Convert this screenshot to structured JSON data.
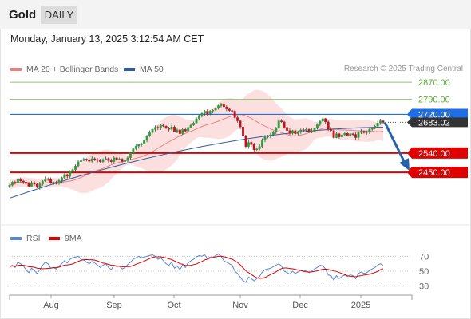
{
  "header": {
    "instrument": "Gold",
    "timeframe_tab": "DAILY"
  },
  "timestamp": "Monday, January 13, 2025 3:12:54 AM CET",
  "legend": {
    "bollinger": {
      "label": "MA 20 + Bollinger Bands",
      "color": "#f08080"
    },
    "ma50": {
      "label": "MA 50",
      "color": "#2e5c9e"
    },
    "credit": "Research © 2025 Trading Central"
  },
  "levels": [
    {
      "label": "2870.00",
      "value": 2870,
      "kind": "target",
      "color": "#8fc16f"
    },
    {
      "label": "2790.00",
      "value": 2790,
      "kind": "target",
      "color": "#8fc16f"
    },
    {
      "label": "2720.00",
      "value": 2720,
      "kind": "pivot",
      "color": "#1e6ee6"
    },
    {
      "label": "2683.02",
      "value": 2683.02,
      "kind": "last",
      "color": "#333333"
    },
    {
      "label": "2540.00",
      "value": 2540,
      "kind": "support",
      "color": "#e10000"
    },
    {
      "label": "2450.00",
      "value": 2450,
      "kind": "support",
      "color": "#e10000"
    }
  ],
  "rsi_panel": {
    "legend": [
      {
        "label": "RSI",
        "color": "#5b87d6"
      },
      {
        "label": "9MA",
        "color": "#e10000"
      }
    ],
    "ticks": [
      "70",
      "50",
      "30"
    ]
  },
  "xaxis": {
    "months": [
      "Aug",
      "Sep",
      "Oct",
      "Nov",
      "Dec",
      "2025"
    ]
  },
  "chart_data": {
    "type": "candlestick",
    "ylim": [
      2250,
      2900
    ],
    "closes": [
      2390,
      2405,
      2400,
      2418,
      2410,
      2405,
      2398,
      2385,
      2402,
      2395,
      2380,
      2395,
      2410,
      2420,
      2418,
      2402,
      2404,
      2398,
      2412,
      2425,
      2440,
      2432,
      2455,
      2463,
      2480,
      2500,
      2506,
      2512,
      2508,
      2502,
      2514,
      2510,
      2506,
      2500,
      2510,
      2515,
      2505,
      2500,
      2518,
      2510,
      2512,
      2500,
      2505,
      2518,
      2540,
      2560,
      2572,
      2580,
      2582,
      2600,
      2620,
      2635,
      2650,
      2660,
      2657,
      2670,
      2665,
      2655,
      2650,
      2662,
      2640,
      2648,
      2630,
      2650,
      2642,
      2660,
      2670,
      2680,
      2700,
      2715,
      2725,
      2735,
      2722,
      2735,
      2740,
      2748,
      2760,
      2770,
      2755,
      2745,
      2738,
      2735,
      2705,
      2690,
      2662,
      2618,
      2570,
      2590,
      2580,
      2555,
      2560,
      2570,
      2600,
      2615,
      2618,
      2625,
      2640,
      2655,
      2690,
      2685,
      2660,
      2645,
      2632,
      2645,
      2630,
      2640,
      2648,
      2645,
      2650,
      2640,
      2645,
      2655,
      2672,
      2688,
      2700,
      2685,
      2650,
      2645,
      2612,
      2630,
      2615,
      2625,
      2632,
      2622,
      2630,
      2627,
      2612,
      2635,
      2642,
      2635,
      2640,
      2650,
      2655,
      2665,
      2680,
      2690,
      2683
    ],
    "ma50_start": 2330,
    "ma50_end": 2660,
    "forecast": {
      "from": 2683,
      "to": 2450
    },
    "rsi": [
      56,
      58,
      55,
      62,
      60,
      57,
      52,
      48,
      54,
      51,
      47,
      52,
      58,
      62,
      60,
      54,
      55,
      53,
      57,
      60,
      64,
      61,
      66,
      68,
      69,
      70,
      66,
      65,
      62,
      60,
      63,
      61,
      58,
      55,
      58,
      60,
      55,
      52,
      58,
      56,
      57,
      53,
      55,
      59,
      62,
      66,
      68,
      70,
      68,
      69,
      70,
      71,
      72,
      70,
      66,
      68,
      64,
      60,
      58,
      62,
      54,
      57,
      52,
      58,
      55,
      61,
      64,
      66,
      69,
      71,
      70,
      72,
      67,
      69,
      68,
      71,
      73,
      70,
      64,
      62,
      60,
      58,
      50,
      47,
      42,
      37,
      35,
      42,
      40,
      37,
      40,
      43,
      49,
      52,
      53,
      54,
      56,
      58,
      60,
      57,
      50,
      48,
      46,
      50,
      47,
      49,
      51,
      50,
      51,
      48,
      50,
      53,
      55,
      58,
      57,
      53,
      45,
      44,
      38,
      44,
      40,
      43,
      45,
      43,
      45,
      44,
      40,
      47,
      49,
      47,
      48,
      51,
      53,
      55,
      58,
      60,
      58
    ],
    "rsi_ylim": [
      20,
      80
    ]
  }
}
